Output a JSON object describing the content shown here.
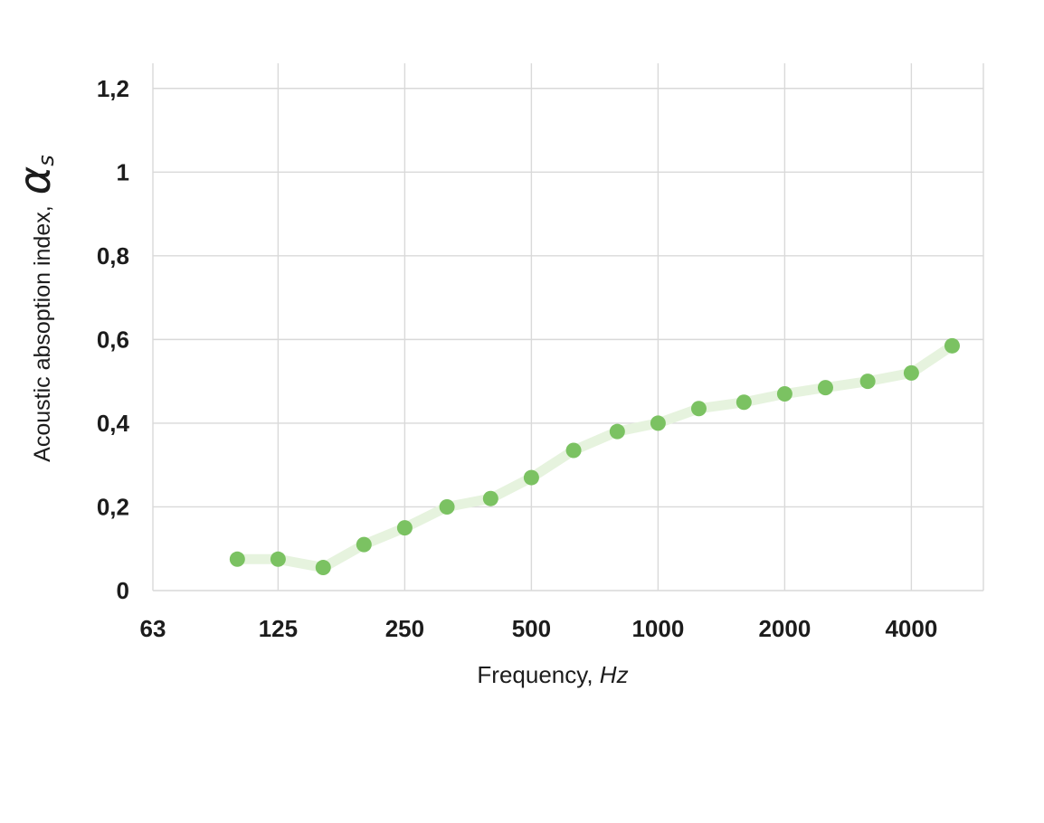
{
  "chart_data": {
    "type": "line",
    "title": "",
    "xlabel": "Frequency,",
    "xlabel_unit": "Hz",
    "ylabel": "Acoustic absoption index,",
    "ylabel_symbol": "α",
    "ylabel_symbol_sub": "s",
    "x_scale": "log2",
    "grid": true,
    "legend": "none",
    "x": [
      100,
      125,
      160,
      200,
      250,
      315,
      400,
      500,
      630,
      800,
      1000,
      1250,
      1600,
      2000,
      2500,
      3150,
      4000,
      5000
    ],
    "y": [
      0.075,
      0.075,
      0.055,
      0.11,
      0.15,
      0.2,
      0.22,
      0.27,
      0.335,
      0.38,
      0.4,
      0.435,
      0.45,
      0.47,
      0.485,
      0.5,
      0.52,
      0.585
    ],
    "x_tick_values": [
      63,
      125,
      250,
      500,
      1000,
      2000,
      4000
    ],
    "x_tick_labels": [
      "63",
      "125",
      "250",
      "500",
      "1000",
      "2000",
      "4000"
    ],
    "y_tick_values": [
      0,
      0.2,
      0.4,
      0.6,
      0.8,
      1,
      1.2
    ],
    "y_tick_labels": [
      "0",
      "0,2",
      "0,4",
      "0,6",
      "0,8",
      "1",
      "1,2"
    ],
    "xlim": [
      63,
      5947
    ],
    "ylim": [
      0,
      1.26
    ],
    "colors": {
      "dot": "#7bc262",
      "line": "#e6f3de",
      "gridline": "#d9d9d9",
      "text": "#1c1c1c",
      "background": "#ffffff"
    }
  }
}
